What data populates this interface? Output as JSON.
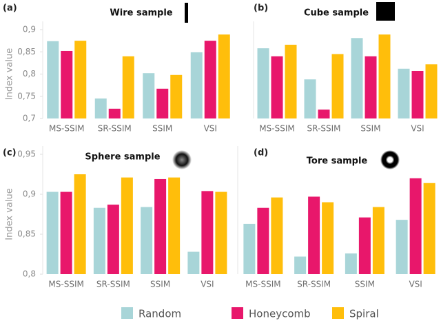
{
  "chart_data": [
    {
      "type": "bar",
      "label": "(a)",
      "title": "Wire sample",
      "y_label": "Index value",
      "categories": [
        "MS-SSIM",
        "SR-SSIM",
        "SSIM",
        "VSI"
      ],
      "series": [
        {
          "name": "Random",
          "color": "#a8d5d8",
          "values": [
            0.874,
            0.745,
            0.802,
            0.849
          ]
        },
        {
          "name": "Honeycomb",
          "color": "#e8176b",
          "values": [
            0.852,
            0.722,
            0.767,
            0.875
          ]
        },
        {
          "name": "Spiral",
          "color": "#ffbe0b",
          "values": [
            0.875,
            0.84,
            0.798,
            0.889
          ]
        }
      ],
      "ylim": [
        0.7,
        0.9
      ],
      "yticks": [
        {
          "value": 0.7,
          "label": "0,7"
        },
        {
          "value": 0.75,
          "label": "0,75"
        },
        {
          "value": 0.8,
          "label": "0,8"
        },
        {
          "value": 0.85,
          "label": "0,85"
        },
        {
          "value": 0.9,
          "label": "0,9"
        }
      ]
    },
    {
      "type": "bar",
      "label": "(b)",
      "title": "Cube sample",
      "categories": [
        "MS-SSIM",
        "SR-SSIM",
        "SSIM",
        "VSI"
      ],
      "series": [
        {
          "name": "Random",
          "color": "#a8d5d8",
          "values": [
            0.858,
            0.788,
            0.881,
            0.812
          ]
        },
        {
          "name": "Honeycomb",
          "color": "#e8176b",
          "values": [
            0.84,
            0.72,
            0.84,
            0.807
          ]
        },
        {
          "name": "Spiral",
          "color": "#ffbe0b",
          "values": [
            0.866,
            0.845,
            0.889,
            0.822
          ]
        }
      ],
      "ylim": [
        0.7,
        0.9
      ]
    },
    {
      "type": "bar",
      "label": "(c)",
      "title": "Sphere sample",
      "y_label": "Index value",
      "categories": [
        "MS-SSIM",
        "SR-SSIM",
        "SSIM",
        "VSI"
      ],
      "series": [
        {
          "name": "Random",
          "color": "#a8d5d8",
          "values": [
            0.903,
            0.883,
            0.884,
            0.828
          ]
        },
        {
          "name": "Honeycomb",
          "color": "#e8176b",
          "values": [
            0.903,
            0.887,
            0.919,
            0.904
          ]
        },
        {
          "name": "Spiral",
          "color": "#ffbe0b",
          "values": [
            0.925,
            0.921,
            0.921,
            0.903
          ]
        }
      ],
      "ylim": [
        0.8,
        0.95
      ],
      "yticks": [
        {
          "value": 0.8,
          "label": "0,8"
        },
        {
          "value": 0.85,
          "label": "0,85"
        },
        {
          "value": 0.9,
          "label": "0,9"
        },
        {
          "value": 0.95,
          "label": "0,95"
        }
      ]
    },
    {
      "type": "bar",
      "label": "(d)",
      "title": "Tore sample",
      "categories": [
        "MS-SSIM",
        "SR-SSIM",
        "SSIM",
        "VSI"
      ],
      "series": [
        {
          "name": "Random",
          "color": "#a8d5d8",
          "values": [
            0.863,
            0.822,
            0.826,
            0.868
          ]
        },
        {
          "name": "Honeycomb",
          "color": "#e8176b",
          "values": [
            0.883,
            0.897,
            0.871,
            0.92
          ]
        },
        {
          "name": "Spiral",
          "color": "#ffbe0b",
          "values": [
            0.896,
            0.89,
            0.884,
            0.914
          ]
        }
      ],
      "ylim": [
        0.8,
        0.95
      ]
    }
  ]
}
